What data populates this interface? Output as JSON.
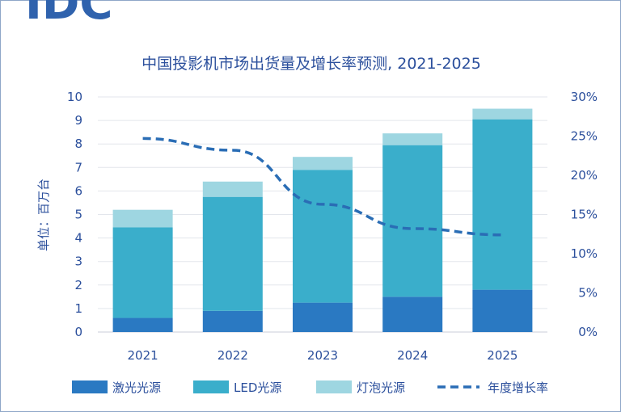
{
  "brand": {
    "logo_text": "IDC",
    "logo_color": "#2f62ad"
  },
  "chart_data": {
    "type": "bar",
    "stacked": true,
    "title": "中国投影机市场出货量及增长率预测, 2021-2025",
    "xlabel": "",
    "ylabel": "单位：百万台",
    "categories": [
      "2021",
      "2022",
      "2023",
      "2024",
      "2025"
    ],
    "ylim": [
      0,
      10
    ],
    "y_ticks": [
      "0",
      "1",
      "2",
      "3",
      "4",
      "5",
      "6",
      "7",
      "8",
      "9",
      "10"
    ],
    "y2lim": [
      0,
      30
    ],
    "y2_ticks": [
      "0%",
      "5%",
      "10%",
      "15%",
      "20%",
      "25%",
      "30%"
    ],
    "series": [
      {
        "name": "激光光源",
        "values": [
          0.6,
          0.9,
          1.25,
          1.5,
          1.8
        ],
        "color": "#2a79c2"
      },
      {
        "name": "LED光源",
        "values": [
          3.85,
          4.85,
          5.65,
          6.45,
          7.25
        ],
        "color": "#3aaecb"
      },
      {
        "name": "灯泡光源",
        "values": [
          0.75,
          0.65,
          0.55,
          0.5,
          0.45
        ],
        "color": "#9ed6e1"
      }
    ],
    "line_series": {
      "name": "年度增长率",
      "axis": "right",
      "style": "dashed",
      "color": "#2a6db5",
      "values": [
        24.7,
        23.2,
        16.3,
        13.2,
        12.4
      ]
    },
    "legend_position": "bottom",
    "grid": true
  }
}
